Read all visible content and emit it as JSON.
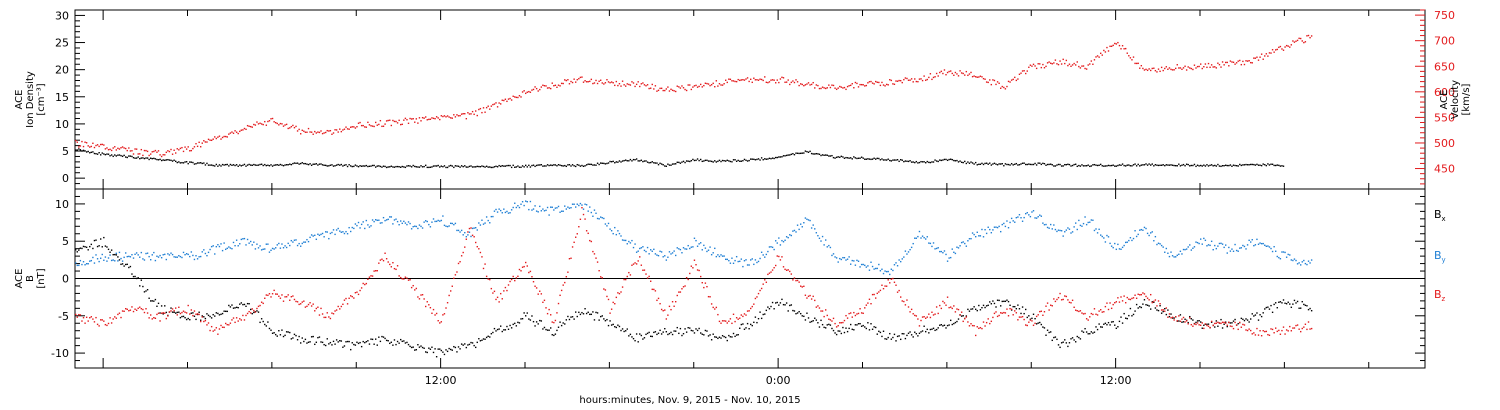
{
  "xlabel": "hours:minutes, Nov.  9, 2015 - Nov. 10, 2015",
  "x_ticks": [
    "12:00",
    "0:00",
    "12:00"
  ],
  "colors": {
    "black": "#000000",
    "red": "#e31a1c",
    "blue": "#1f7fd4"
  },
  "chart_data": [
    {
      "type": "scatter",
      "panel": "top",
      "ylabel_lines": [
        "ACE",
        "Ion Density",
        "[cm⁻³]"
      ],
      "y2label_lines": [
        "ACE",
        "Velocity",
        "[km/s]"
      ],
      "xlim": [
        -1,
        47
      ],
      "ylim": [
        -2,
        31
      ],
      "y2lim": [
        410,
        760
      ],
      "y_ticks": [
        0,
        5,
        10,
        15,
        20,
        25,
        30
      ],
      "y2_ticks": [
        450,
        500,
        550,
        600,
        650,
        700,
        750
      ],
      "series": [
        {
          "color": "black",
          "axis": "left",
          "x": [
            -1,
            0,
            1,
            2,
            3,
            4,
            5,
            6,
            7,
            8,
            9,
            10,
            11,
            12,
            13,
            14,
            15,
            16,
            17,
            18,
            19,
            20,
            21,
            22,
            23,
            24,
            25,
            26,
            27,
            28,
            29,
            30,
            31,
            32,
            33,
            34,
            35,
            36,
            37,
            38,
            39,
            40,
            41,
            42
          ],
          "y": [
            5.5,
            4.5,
            4.0,
            3.5,
            3.0,
            2.5,
            2.5,
            2.5,
            2.8,
            2.5,
            2.4,
            2.2,
            2.3,
            2.3,
            2.2,
            2.3,
            2.3,
            2.5,
            2.4,
            3.0,
            3.5,
            2.5,
            3.5,
            3.2,
            3.5,
            4.0,
            5.0,
            4.0,
            3.8,
            3.5,
            3.0,
            3.5,
            2.8,
            2.6,
            2.8,
            2.5,
            2.5,
            2.5,
            2.6,
            2.5,
            2.5,
            2.5,
            2.6,
            2.5
          ]
        },
        {
          "color": "red",
          "axis": "right",
          "x": [
            -1,
            0,
            1,
            2,
            3,
            4,
            5,
            6,
            7,
            8,
            9,
            10,
            11,
            12,
            13,
            14,
            15,
            16,
            17,
            18,
            19,
            20,
            21,
            22,
            23,
            24,
            25,
            26,
            27,
            28,
            29,
            30,
            31,
            32,
            33,
            34,
            35,
            36,
            37,
            38,
            39,
            40,
            41,
            42,
            43
          ],
          "y": [
            500,
            495,
            485,
            480,
            490,
            510,
            530,
            545,
            525,
            520,
            535,
            540,
            545,
            550,
            555,
            575,
            600,
            615,
            625,
            620,
            615,
            605,
            610,
            620,
            625,
            625,
            615,
            610,
            615,
            620,
            625,
            640,
            635,
            610,
            650,
            660,
            650,
            700,
            640,
            650,
            650,
            655,
            665,
            690,
            710
          ]
        }
      ]
    },
    {
      "type": "scatter",
      "panel": "bottom",
      "ylabel_lines": [
        "ACE",
        "B",
        "[nT]"
      ],
      "xlim": [
        -1,
        47
      ],
      "ylim": [
        -12,
        12
      ],
      "y_ticks": [
        -10,
        -5,
        0,
        5,
        10
      ],
      "zero_line": 0,
      "legend": [
        {
          "label": "B",
          "sub": "x",
          "color": "black"
        },
        {
          "label": "B",
          "sub": "y",
          "color": "blue"
        },
        {
          "label": "B",
          "sub": "z",
          "color": "red"
        }
      ],
      "series": [
        {
          "color": "black",
          "axis": "left",
          "x": [
            -1,
            0,
            1,
            2,
            3,
            4,
            5,
            6,
            7,
            8,
            9,
            10,
            11,
            12,
            13,
            14,
            15,
            16,
            17,
            18,
            19,
            20,
            21,
            22,
            23,
            24,
            25,
            26,
            27,
            28,
            29,
            30,
            31,
            32,
            33,
            34,
            35,
            36,
            37,
            38,
            39,
            40,
            41,
            42,
            43
          ],
          "y": [
            4,
            5,
            1,
            -4,
            -5,
            -5,
            -3,
            -7,
            -8,
            -8.5,
            -9,
            -8,
            -9,
            -10,
            -9,
            -7,
            -5,
            -7,
            -4,
            -6,
            -8,
            -7,
            -7,
            -8,
            -6,
            -3,
            -5,
            -7,
            -6,
            -8,
            -7,
            -6,
            -4,
            -3,
            -5,
            -9,
            -7,
            -6,
            -3,
            -5,
            -6,
            -6,
            -5,
            -3,
            -4
          ]
        },
        {
          "color": "blue",
          "axis": "left",
          "x": [
            -1,
            0,
            1,
            2,
            3,
            4,
            5,
            6,
            7,
            8,
            9,
            10,
            11,
            12,
            13,
            14,
            15,
            16,
            17,
            18,
            19,
            20,
            21,
            22,
            23,
            24,
            25,
            26,
            27,
            28,
            29,
            30,
            31,
            32,
            33,
            34,
            35,
            36,
            37,
            38,
            39,
            40,
            41,
            42,
            43
          ],
          "y": [
            2,
            3,
            3,
            3,
            3,
            4,
            5,
            4,
            5,
            6,
            7,
            8,
            7,
            8,
            6,
            9,
            10,
            9,
            10,
            7,
            4,
            3,
            5,
            3,
            2,
            5,
            8,
            3,
            2,
            1,
            6,
            3,
            6,
            7,
            9,
            6,
            8,
            4,
            7,
            3,
            5,
            4,
            5,
            3,
            2
          ]
        },
        {
          "color": "red",
          "axis": "left",
          "x": [
            -1,
            0,
            1,
            2,
            3,
            4,
            5,
            6,
            7,
            8,
            9,
            10,
            11,
            12,
            13,
            14,
            15,
            16,
            17,
            18,
            19,
            20,
            21,
            22,
            23,
            24,
            25,
            26,
            27,
            28,
            29,
            30,
            31,
            32,
            33,
            34,
            35,
            36,
            37,
            38,
            39,
            40,
            41,
            42,
            43
          ],
          "y": [
            -5,
            -6,
            -4,
            -5,
            -4,
            -7,
            -5,
            -2,
            -3,
            -5,
            -2,
            3,
            -1,
            -6,
            7,
            -3,
            2,
            -6,
            9,
            -4,
            3,
            -5,
            2,
            -6,
            -4,
            3,
            -2,
            -6,
            -4,
            0,
            -6,
            -3,
            -7,
            -4,
            -6,
            -2,
            -5,
            -3,
            -2,
            -5,
            -6,
            -6,
            -7,
            -7,
            -6
          ]
        }
      ]
    }
  ]
}
